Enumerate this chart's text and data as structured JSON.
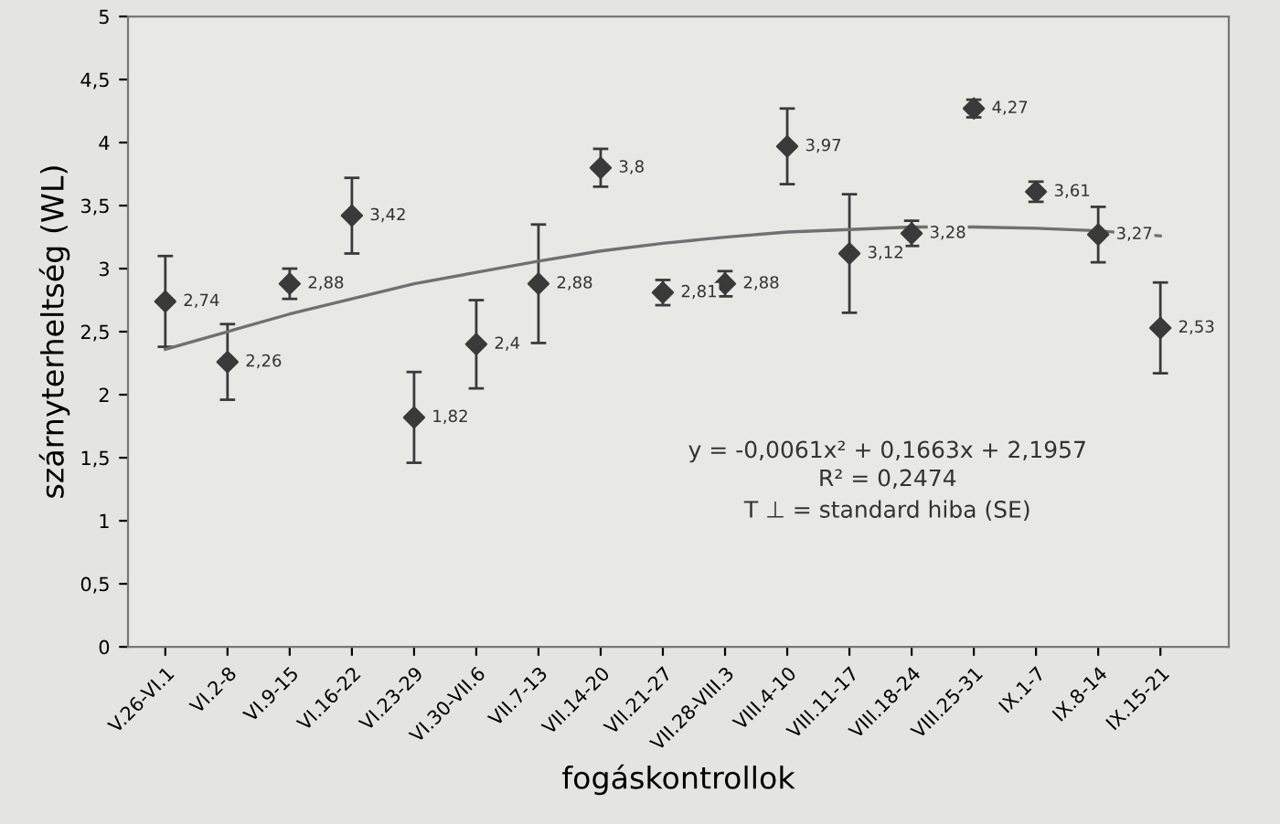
{
  "chart_data": {
    "type": "scatter",
    "xlabel": "fogáskontrollok",
    "ylabel": "szárnyterheltség (WL)",
    "categories": [
      "V.26-VI.1",
      "VI.2-8",
      "VI.9-15",
      "VI.16-22",
      "VI.23-29",
      "VI.30-VII.6",
      "VII.7-13",
      "VII.14-20",
      "VII.21-27",
      "VII.28-VIII.3",
      "VIII.4-10",
      "VIII.11-17",
      "VIII.18-24",
      "VIII.25-31",
      "IX.1-7",
      "IX.8-14",
      "IX.15-21"
    ],
    "series": [
      {
        "color": "#3a3a3a",
        "marker": "diamond",
        "values": [
          2.74,
          2.26,
          2.88,
          3.42,
          1.82,
          2.4,
          2.88,
          3.8,
          2.81,
          2.88,
          3.97,
          3.12,
          3.28,
          4.27,
          3.61,
          3.27,
          2.53
        ],
        "errors": [
          0.36,
          0.3,
          0.12,
          0.3,
          0.36,
          0.35,
          0.47,
          0.15,
          0.1,
          0.1,
          0.3,
          0.47,
          0.1,
          0.07,
          0.08,
          0.22,
          0.36
        ],
        "value_labels": [
          "2,74",
          "2,26",
          "2,88",
          "3,42",
          "1,82",
          "2,4",
          "2,88",
          "3,8",
          "2,81",
          "2,88",
          "3,97",
          "3,12",
          "3,28",
          "4,27",
          "3,61",
          "3,27",
          "2,53"
        ]
      },
      {
        "type": "line",
        "color": "#707070",
        "marker": "none",
        "values": [
          2.36,
          2.5,
          2.64,
          2.76,
          2.88,
          2.97,
          3.06,
          3.14,
          3.2,
          3.25,
          3.29,
          3.31,
          3.33,
          3.33,
          3.32,
          3.3,
          3.26
        ]
      }
    ],
    "ylim": [
      0,
      5
    ],
    "yticks": [
      0,
      {
        "value": 0.5,
        "label": "0,5"
      },
      1,
      {
        "value": 1.5,
        "label": "1,5"
      },
      2,
      {
        "value": 2.5,
        "label": "2,5"
      },
      3,
      {
        "value": 3.5,
        "label": "3,5"
      },
      4,
      {
        "value": 4.5,
        "label": "4,5"
      },
      5
    ],
    "grid": false,
    "annotations": [
      "y = -0,0061x² + 0,1663x + 2,1957",
      "R² = 0,2474",
      "T ⊥ = standard hiba (SE)"
    ]
  }
}
